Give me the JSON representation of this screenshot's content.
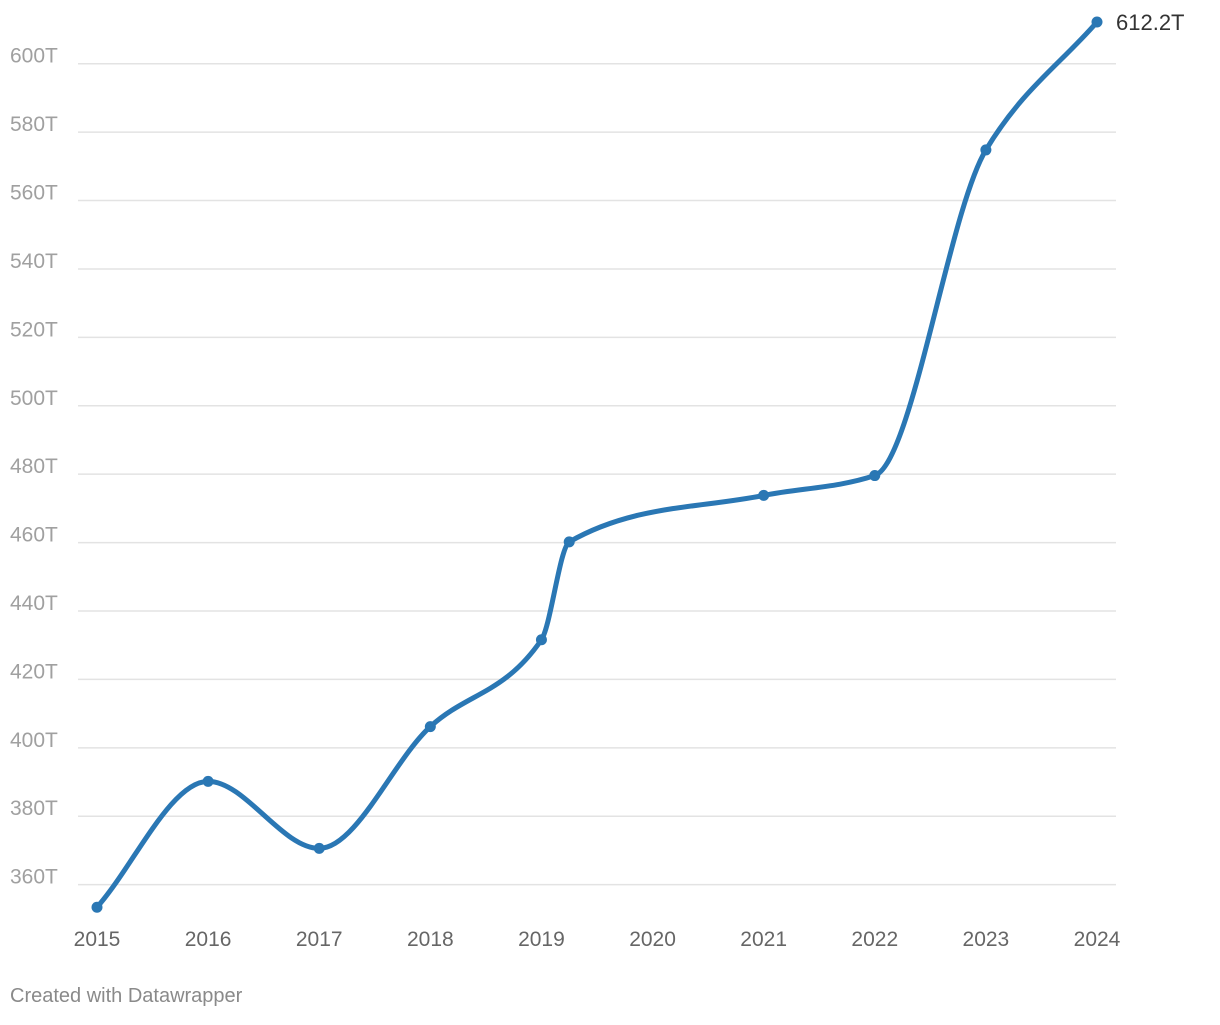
{
  "chart_data": {
    "type": "line",
    "title": "",
    "xlabel": "",
    "ylabel": "",
    "x_ticks": [
      "2015",
      "2016",
      "2017",
      "2018",
      "2019",
      "2020",
      "2021",
      "2022",
      "2023",
      "2024"
    ],
    "y_ticks": [
      "360T",
      "380T",
      "400T",
      "420T",
      "440T",
      "460T",
      "480T",
      "500T",
      "520T",
      "540T",
      "560T",
      "580T",
      "600T"
    ],
    "y_tick_values": [
      360,
      380,
      400,
      420,
      440,
      460,
      480,
      500,
      520,
      540,
      560,
      580,
      600
    ],
    "xlim": [
      2015,
      2024
    ],
    "ylim": [
      352,
      612.2
    ],
    "grid": true,
    "series": [
      {
        "color": "#2a77b4",
        "points": [
          {
            "x": 2015.0,
            "y": 353.4
          },
          {
            "x": 2016.0,
            "y": 390.2
          },
          {
            "x": 2017.0,
            "y": 370.6
          },
          {
            "x": 2018.0,
            "y": 406.2
          },
          {
            "x": 2019.0,
            "y": 431.6
          },
          {
            "x": 2019.25,
            "y": 460.2
          },
          {
            "x": 2021.0,
            "y": 473.8
          },
          {
            "x": 2022.0,
            "y": 479.6
          },
          {
            "x": 2023.0,
            "y": 574.8
          },
          {
            "x": 2024.0,
            "y": 612.2
          }
        ],
        "end_label": "612.2T"
      }
    ],
    "colors": {
      "line": "#2a77b4",
      "grid": "#e3e3e3",
      "y_tick_text": "#a0a0a0",
      "x_tick_text": "#666666",
      "end_label_text": "#333333"
    }
  },
  "footer": {
    "credit": "Created with Datawrapper"
  }
}
